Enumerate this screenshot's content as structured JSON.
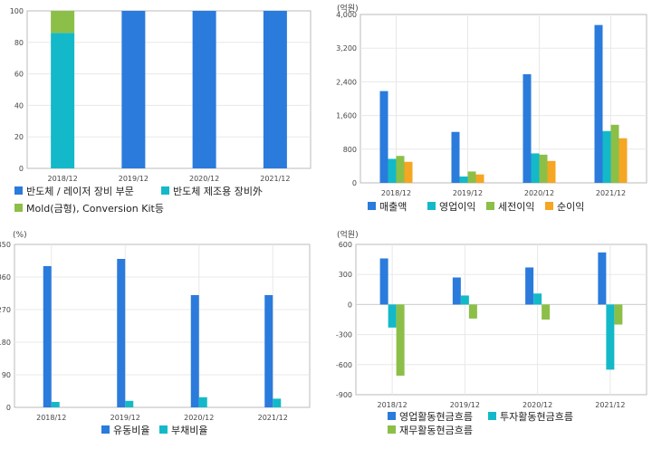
{
  "colors": {
    "blue": "#2a7bdc",
    "cyan": "#14b9c9",
    "green": "#8cbf48",
    "orange": "#f5a623",
    "frame": "#bbbbbb",
    "grid": "#e8e8e8"
  },
  "chart_data": [
    {
      "id": "segment-mix",
      "type": "bar",
      "stacked": true,
      "unit": "",
      "categories": [
        "2018/12",
        "2019/12",
        "2020/12",
        "2021/12"
      ],
      "y_ticks": [
        "0",
        "20",
        "40",
        "60",
        "80",
        "100"
      ],
      "ylim": [
        0,
        100
      ],
      "grid": true,
      "legend_position": "bottom",
      "series": [
        {
          "name": "반도체 / 레이저 장비 부문",
          "color": "#2a7bdc",
          "values": [
            0,
            100,
            100,
            100
          ]
        },
        {
          "name": "반도체 제조용 장비外",
          "color": "#14b9c9",
          "values": [
            86,
            0,
            0,
            0
          ]
        },
        {
          "name": "Mold(금형), Conversion Kit등",
          "color": "#8cbf48",
          "values": [
            14,
            0,
            0,
            0
          ]
        }
      ]
    },
    {
      "id": "income",
      "type": "bar",
      "stacked": false,
      "unit": "(억원)",
      "categories": [
        "2018/12",
        "2019/12",
        "2020/12",
        "2021/12"
      ],
      "y_ticks": [
        "0",
        "800",
        "1,600",
        "2,400",
        "3,200",
        "4,000"
      ],
      "ylim": [
        0,
        4000
      ],
      "grid": true,
      "legend_position": "bottom",
      "series": [
        {
          "name": "매출액",
          "color": "#2a7bdc",
          "values": [
            2180,
            1210,
            2580,
            3750
          ]
        },
        {
          "name": "영업이익",
          "color": "#14b9c9",
          "values": [
            570,
            150,
            700,
            1230
          ]
        },
        {
          "name": "세전이익",
          "color": "#8cbf48",
          "values": [
            640,
            270,
            670,
            1380
          ]
        },
        {
          "name": "순이익",
          "color": "#f5a623",
          "values": [
            500,
            200,
            520,
            1060
          ]
        }
      ]
    },
    {
      "id": "ratios",
      "type": "bar",
      "stacked": false,
      "unit": "(%)",
      "categories": [
        "2018/12",
        "2019/12",
        "2020/12",
        "2021/12"
      ],
      "y_ticks": [
        "0",
        "90",
        "180",
        "270",
        "360",
        "450"
      ],
      "ylim": [
        0,
        450
      ],
      "grid": true,
      "legend_position": "bottom",
      "series": [
        {
          "name": "유동비율",
          "color": "#2a7bdc",
          "values": [
            390,
            410,
            310,
            310
          ]
        },
        {
          "name": "부채비율",
          "color": "#14b9c9",
          "values": [
            15,
            18,
            28,
            24
          ]
        }
      ]
    },
    {
      "id": "cashflow",
      "type": "bar",
      "stacked": false,
      "unit": "(억원)",
      "categories": [
        "2018/12",
        "2019/12",
        "2020/12",
        "2021/12"
      ],
      "y_ticks": [
        "-900",
        "-600",
        "-300",
        "0",
        "300",
        "600"
      ],
      "ylim": [
        -900,
        600
      ],
      "grid": true,
      "legend_position": "bottom",
      "series": [
        {
          "name": "영업활동현금흐름",
          "color": "#2a7bdc",
          "values": [
            460,
            270,
            370,
            520
          ]
        },
        {
          "name": "투자활동현금흐름",
          "color": "#14b9c9",
          "values": [
            -230,
            90,
            110,
            -650
          ]
        },
        {
          "name": "재무활동현금흐름",
          "color": "#8cbf48",
          "values": [
            -710,
            -140,
            -150,
            -200
          ]
        }
      ]
    }
  ]
}
